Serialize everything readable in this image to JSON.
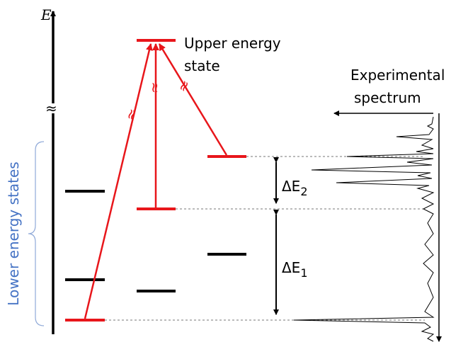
{
  "axis_label": "E",
  "break_mark": "≈",
  "upper_state_label": [
    "Upper energy",
    "state"
  ],
  "spectrum_label": [
    "Experimental",
    "spectrum"
  ],
  "lower_states_label": "Lower energy states",
  "delta_e2": {
    "symbol": "ΔE",
    "subscript": "2"
  },
  "delta_e1": {
    "symbol": "ΔE",
    "subscript": "1"
  }
}
